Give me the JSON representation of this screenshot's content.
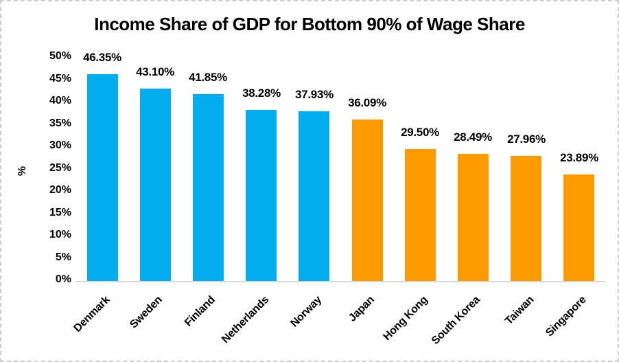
{
  "title": "Income Share of GDP for Bottom 90% of Wage Share",
  "chart_data": {
    "type": "bar",
    "title": "Income Share of GDP for Bottom 90% of Wage Share",
    "xlabel": "",
    "ylabel": "%",
    "categories": [
      "Denmark",
      "Sweden",
      "Finland",
      "Netherlands",
      "Norway",
      "Japan",
      "Hong Kong",
      "South Korea",
      "Taiwan",
      "Singapore"
    ],
    "values": [
      46.35,
      43.1,
      41.85,
      38.28,
      37.93,
      36.09,
      29.5,
      28.49,
      27.96,
      23.89
    ],
    "data_labels": [
      "46.35%",
      "43.10%",
      "41.85%",
      "38.28%",
      "37.93%",
      "36.09%",
      "29.50%",
      "28.49%",
      "27.96%",
      "23.89%"
    ],
    "bar_colors": [
      "#00AEEF",
      "#00AEEF",
      "#00AEEF",
      "#00AEEF",
      "#00AEEF",
      "#FC9A00",
      "#FC9A00",
      "#FC9A00",
      "#FC9A00",
      "#FC9A00"
    ],
    "ylim": [
      0,
      50
    ],
    "ytick_step": 5,
    "ytick_labels": [
      "0%",
      "5%",
      "10%",
      "15%",
      "20%",
      "25%",
      "30%",
      "35%",
      "40%",
      "45%",
      "50%"
    ],
    "grid": false,
    "legend": "none",
    "category_label_rotation_deg": -45
  },
  "colors": {
    "blue_series": "#00AEEF",
    "orange_series": "#FC9A00",
    "axis_line": "#D9D9D9",
    "text": "#000000",
    "background": "#FFFFFF",
    "border_dash": "#CDCDCD"
  }
}
